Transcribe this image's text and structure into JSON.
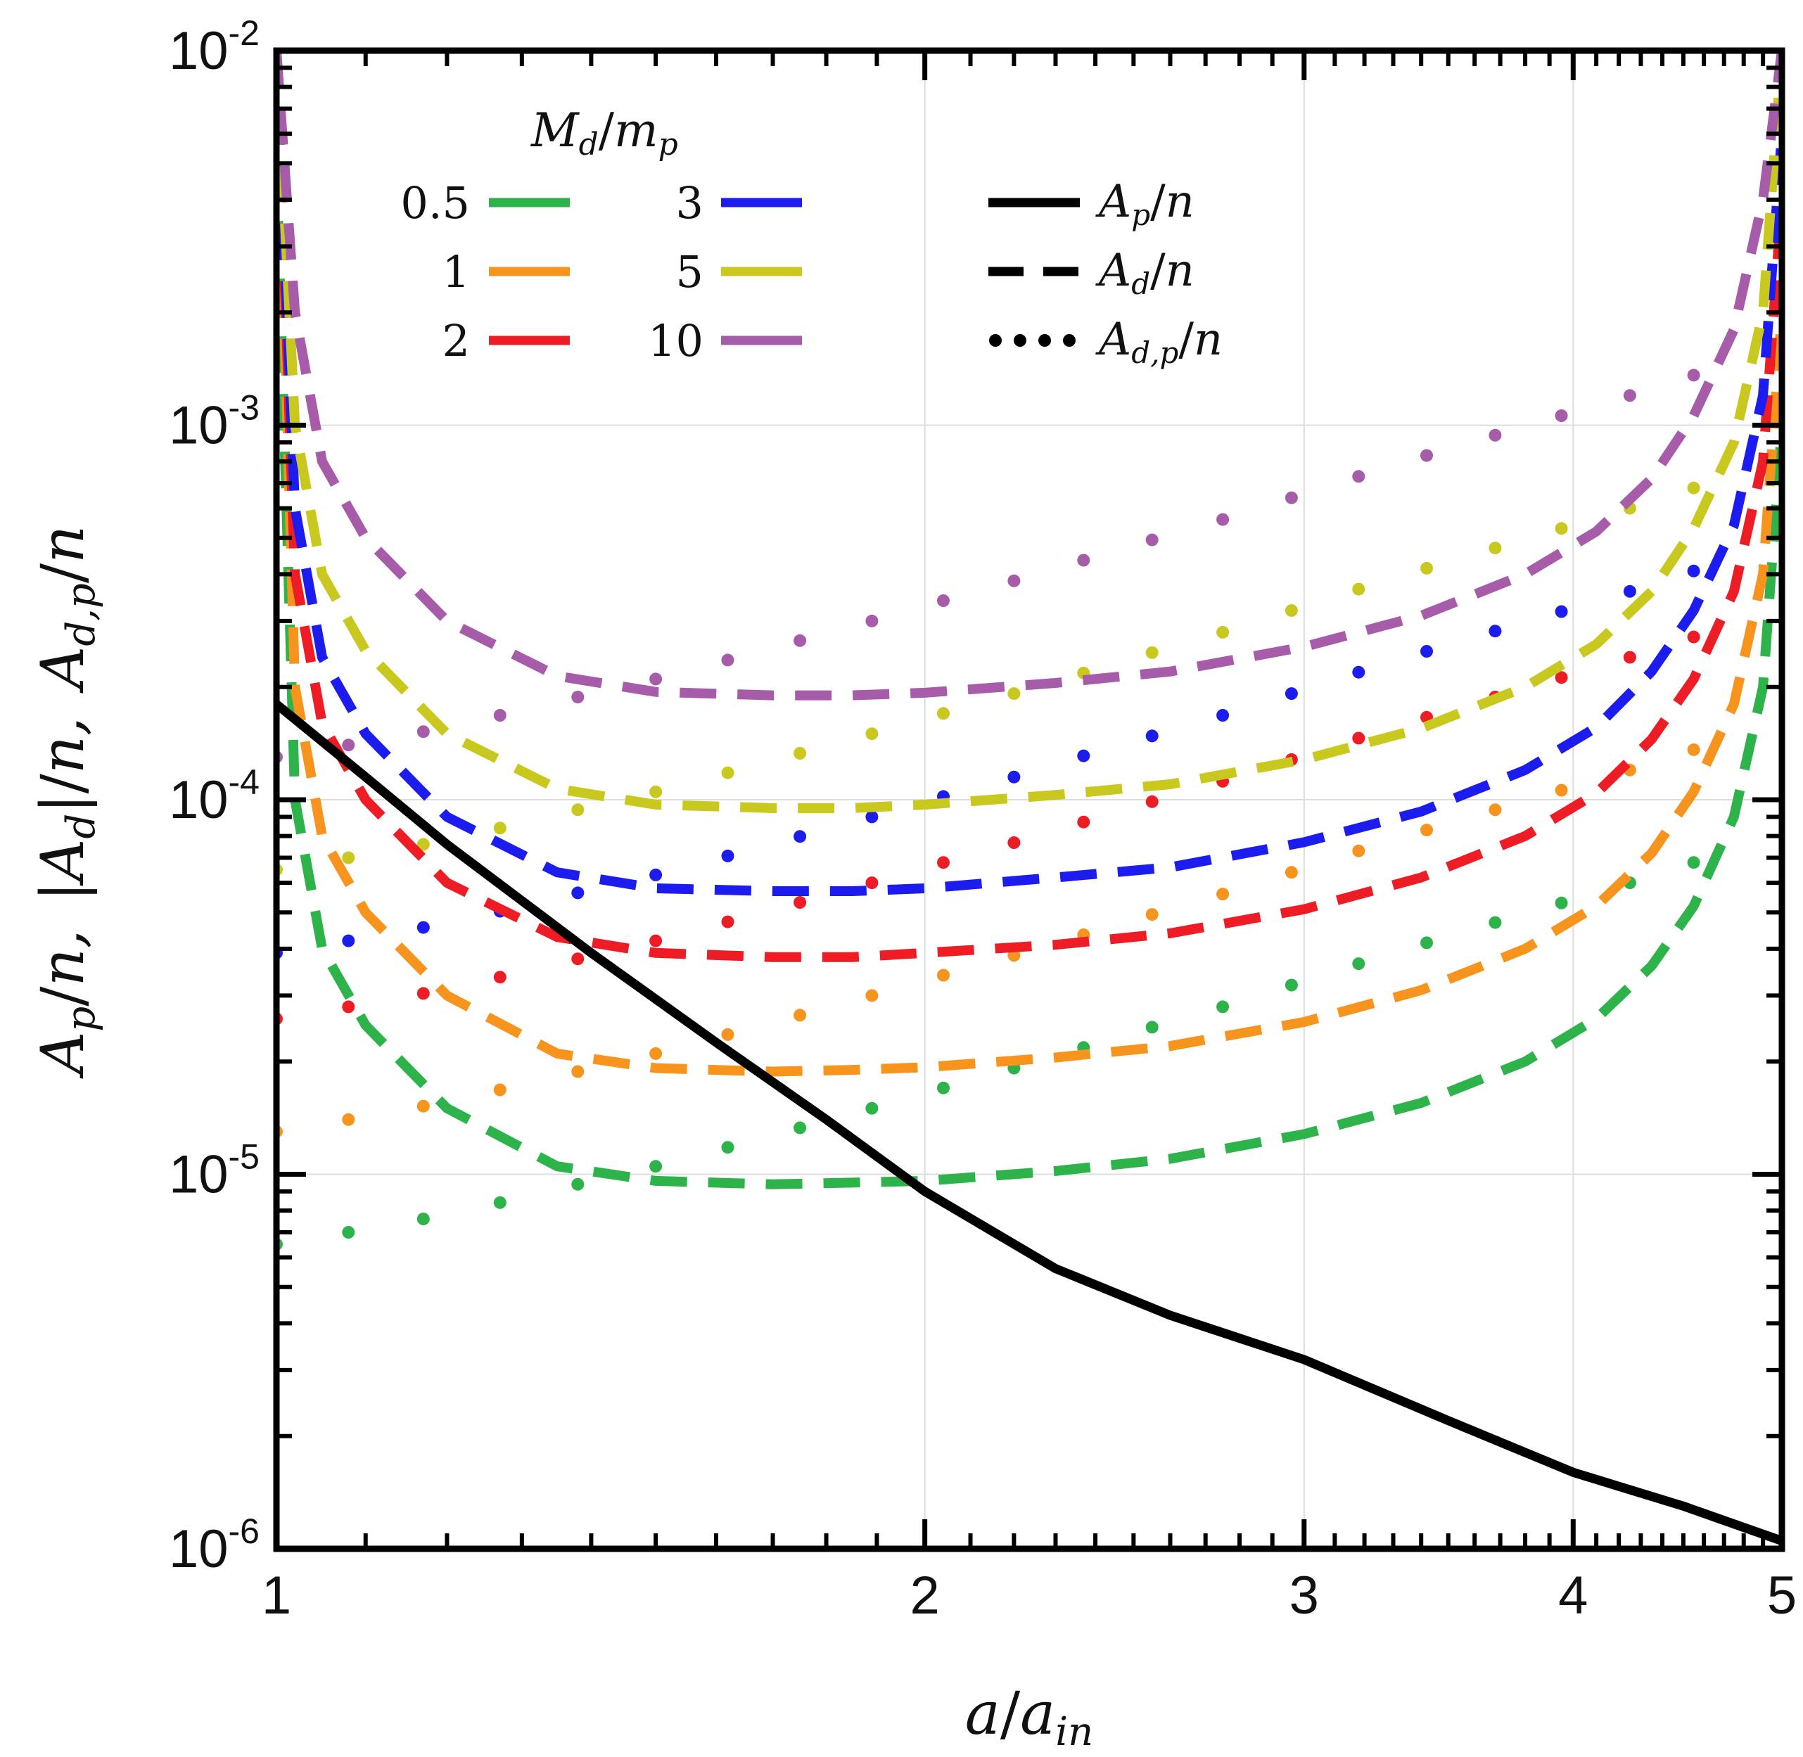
{
  "chart_data": {
    "type": "line",
    "xlabel": "a/a_in",
    "ylabel": "A_p/n,  |A_d|/n,  A_d,p/n",
    "xscale": "log",
    "yscale": "log",
    "xlim": [
      1,
      5
    ],
    "ylim": [
      1e-06,
      0.01
    ],
    "xticks": [
      1,
      2,
      3,
      4,
      5
    ],
    "xtick_labels": [
      "1",
      "2",
      "3",
      "4",
      "5"
    ],
    "yticks": [
      1e-06,
      1e-05,
      0.0001,
      0.001,
      0.01
    ],
    "ytick_labels": [
      {
        "base": "10",
        "exp": "-6"
      },
      {
        "base": "10",
        "exp": "-5"
      },
      {
        "base": "10",
        "exp": "-4"
      },
      {
        "base": "10",
        "exp": "-3"
      },
      {
        "base": "10",
        "exp": "-2"
      }
    ],
    "grid": true,
    "legend_title": "M_d/m_p",
    "mass_ratios": [
      {
        "label": "0.5",
        "color": "#2db34a"
      },
      {
        "label": "1",
        "color": "#f7941d"
      },
      {
        "label": "2",
        "color": "#ee1c24"
      },
      {
        "label": "3",
        "color": "#1c1cef"
      },
      {
        "label": "5",
        "color": "#c8c81e"
      },
      {
        "label": "10",
        "color": "#a65ca8"
      }
    ],
    "style_legend": [
      {
        "label": "A_p/n",
        "style": "solid"
      },
      {
        "label": "A_d/n",
        "style": "dashed"
      },
      {
        "label": "A_d,p/n",
        "style": "dotted"
      }
    ],
    "ap_curve": {
      "x": [
        1.0,
        1.1,
        1.2,
        1.4,
        1.6,
        1.8,
        2.0,
        2.3,
        2.6,
        3.0,
        3.5,
        4.0,
        4.5,
        5.0
      ],
      "y": [
        0.00018,
        0.000115,
        7.6e-05,
        3.9e-05,
        2.25e-05,
        1.4e-05,
        9e-06,
        5.6e-06,
        4.2e-06,
        3.2e-06,
        2.2e-06,
        1.6e-06,
        1.3e-06,
        1.05e-06
      ]
    },
    "disk_curves": {
      "x": [
        1.0,
        1.02,
        1.05,
        1.1,
        1.2,
        1.35,
        1.5,
        1.7,
        1.85,
        2.0,
        2.3,
        2.6,
        3.0,
        3.4,
        3.8,
        4.1,
        4.35,
        4.55,
        4.75,
        4.9,
        5.0
      ],
      "series": [
        {
          "name": "0.5",
          "y": [
            0.005,
            0.0001,
            4e-05,
            2.5e-05,
            1.5e-05,
            1.05e-05,
            9.6e-06,
            9.4e-06,
            9.5e-06,
            9.6e-06,
            1.02e-05,
            1.1e-05,
            1.28e-05,
            1.55e-05,
            2e-05,
            2.6e-05,
            3.6e-05,
            5.2e-05,
            9e-05,
            0.0002,
            0.001
          ]
        },
        {
          "name": "1",
          "y": [
            0.01,
            0.0002,
            8e-05,
            5e-05,
            3e-05,
            2.1e-05,
            1.92e-05,
            1.88e-05,
            1.9e-05,
            1.93e-05,
            2.05e-05,
            2.2e-05,
            2.55e-05,
            3.1e-05,
            4e-05,
            5.2e-05,
            7.2e-05,
            0.000105,
            0.00018,
            0.0004,
            0.002
          ]
        },
        {
          "name": "2",
          "y": [
            0.01,
            0.0004,
            0.00016,
            0.0001,
            6e-05,
            4.3e-05,
            3.9e-05,
            3.8e-05,
            3.8e-05,
            3.9e-05,
            4.1e-05,
            4.4e-05,
            5.1e-05,
            6.2e-05,
            8e-05,
            0.000104,
            0.000145,
            0.00021,
            0.00036,
            0.0008,
            0.004
          ]
        },
        {
          "name": "3",
          "y": [
            0.01,
            0.0006,
            0.00024,
            0.00015,
            9e-05,
            6.4e-05,
            5.8e-05,
            5.7e-05,
            5.7e-05,
            5.8e-05,
            6.2e-05,
            6.6e-05,
            7.7e-05,
            9.3e-05,
            0.00012,
            0.000156,
            0.00022,
            0.00032,
            0.00054,
            0.0012,
            0.006
          ]
        },
        {
          "name": "5",
          "y": [
            0.01,
            0.001,
            0.0004,
            0.00025,
            0.00015,
            0.000107,
            9.7e-05,
            9.5e-05,
            9.5e-05,
            9.7e-05,
            0.000103,
            0.00011,
            0.000128,
            0.000155,
            0.0002,
            0.00026,
            0.00036,
            0.00053,
            0.0009,
            0.002,
            0.01
          ]
        },
        {
          "name": "10",
          "y": [
            0.01,
            0.002,
            0.0008,
            0.0005,
            0.0003,
            0.000214,
            0.000194,
            0.00019,
            0.00019,
            0.000193,
            0.000205,
            0.00022,
            0.000256,
            0.00031,
            0.0004,
            0.00052,
            0.00072,
            0.00106,
            0.0018,
            0.004,
            0.01
          ]
        }
      ]
    },
    "disk_planet_points": {
      "x": [
        1.0,
        1.08,
        1.17,
        1.27,
        1.38,
        1.5,
        1.62,
        1.75,
        1.89,
        2.04,
        2.2,
        2.37,
        2.55,
        2.75,
        2.96,
        3.18,
        3.42,
        3.68,
        3.95,
        4.25,
        4.55
      ],
      "series": [
        {
          "name": "0.5",
          "y": [
            6.5e-06,
            7e-06,
            7.6e-06,
            8.4e-06,
            9.4e-06,
            1.05e-05,
            1.18e-05,
            1.33e-05,
            1.5e-05,
            1.7e-05,
            1.92e-05,
            2.18e-05,
            2.47e-05,
            2.8e-05,
            3.2e-05,
            3.65e-05,
            4.15e-05,
            4.7e-05,
            5.3e-05,
            6e-05,
            6.8e-05
          ]
        },
        {
          "name": "1",
          "y": [
            1.3e-05,
            1.4e-05,
            1.52e-05,
            1.68e-05,
            1.88e-05,
            2.1e-05,
            2.36e-05,
            2.66e-05,
            3e-05,
            3.4e-05,
            3.84e-05,
            4.36e-05,
            4.94e-05,
            5.6e-05,
            6.4e-05,
            7.3e-05,
            8.3e-05,
            9.4e-05,
            0.000106,
            0.00012,
            0.000136
          ]
        },
        {
          "name": "2",
          "y": [
            2.6e-05,
            2.8e-05,
            3.04e-05,
            3.36e-05,
            3.76e-05,
            4.2e-05,
            4.72e-05,
            5.32e-05,
            6e-05,
            6.8e-05,
            7.68e-05,
            8.72e-05,
            9.88e-05,
            0.000112,
            0.000128,
            0.000146,
            0.000166,
            0.000188,
            0.000212,
            0.00024,
            0.000272
          ]
        },
        {
          "name": "3",
          "y": [
            3.9e-05,
            4.2e-05,
            4.56e-05,
            5.04e-05,
            5.64e-05,
            6.3e-05,
            7.08e-05,
            7.98e-05,
            9e-05,
            0.000102,
            0.000115,
            0.000131,
            0.000148,
            0.000168,
            0.000192,
            0.000219,
            0.000249,
            0.000282,
            0.000318,
            0.00036,
            0.000408
          ]
        },
        {
          "name": "5",
          "y": [
            6.5e-05,
            7e-05,
            7.6e-05,
            8.4e-05,
            9.4e-05,
            0.000105,
            0.000118,
            0.000133,
            0.00015,
            0.00017,
            0.000192,
            0.000218,
            0.000247,
            0.00028,
            0.00032,
            0.000365,
            0.000415,
            0.00047,
            0.00053,
            0.0006,
            0.00068
          ]
        },
        {
          "name": "10",
          "y": [
            0.00013,
            0.00014,
            0.000152,
            0.000168,
            0.000188,
            0.00021,
            0.000236,
            0.000266,
            0.0003,
            0.00034,
            0.000384,
            0.000436,
            0.000494,
            0.00056,
            0.00064,
            0.00073,
            0.00083,
            0.00094,
            0.00106,
            0.0012,
            0.00136
          ]
        }
      ]
    }
  }
}
